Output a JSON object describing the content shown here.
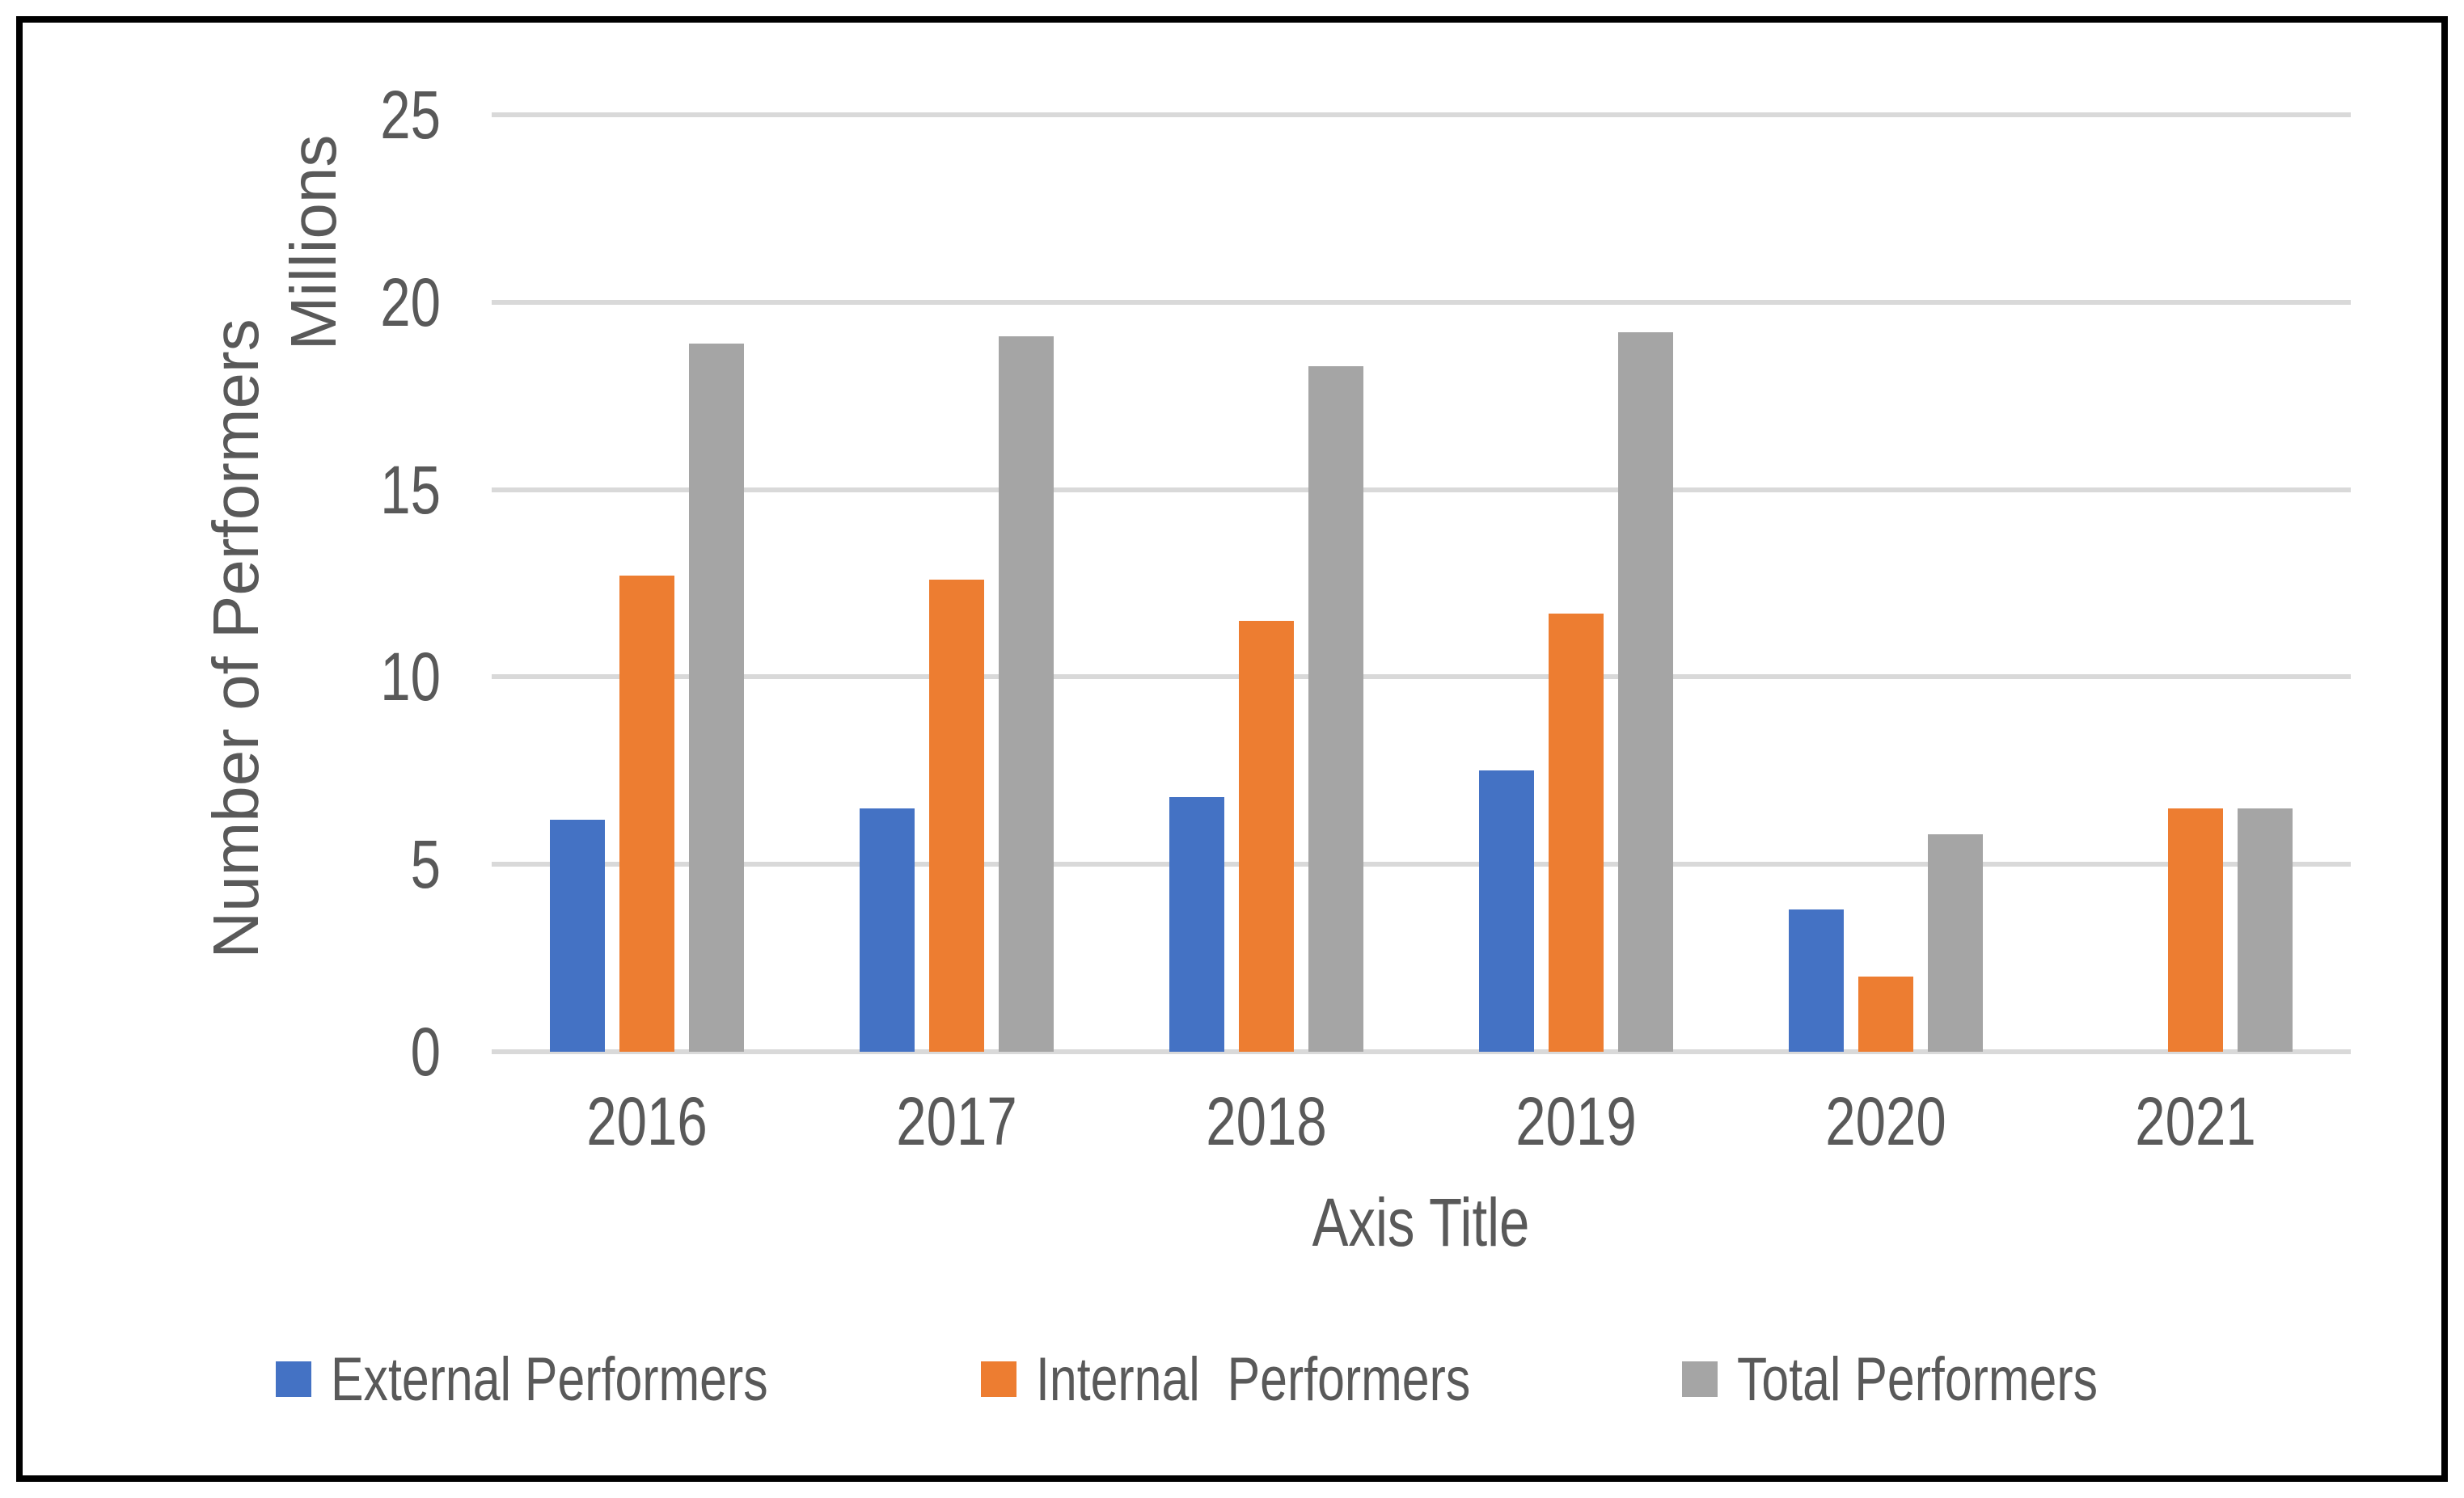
{
  "chart_data": {
    "type": "bar",
    "title": "",
    "categories": [
      "2016",
      "2017",
      "2018",
      "2019",
      "2020",
      "2021"
    ],
    "series": [
      {
        "name": "External Performers",
        "color": "#4472C4",
        "values": [
          6.2,
          6.5,
          6.8,
          7.5,
          3.8,
          0
        ]
      },
      {
        "name": "Internal  Performers",
        "color": "#ED7D31",
        "values": [
          12.7,
          12.6,
          11.5,
          11.7,
          2.0,
          6.5
        ]
      },
      {
        "name": "Total Performers",
        "color": "#A5A5A5",
        "values": [
          18.9,
          19.1,
          18.3,
          19.2,
          5.8,
          6.5
        ]
      }
    ],
    "xlabel": "Axis Title",
    "ylabel": "Number of Performers",
    "y_units_label": "Millions",
    "ylim": [
      0,
      25
    ],
    "yticks": [
      0,
      5,
      10,
      15,
      20,
      25
    ],
    "grid": true,
    "legend_position": "bottom"
  },
  "colors": {
    "text": "#595959",
    "gridline": "#D9D9D9",
    "frame_border": "#000000",
    "background": "#FFFFFF",
    "series_blue": "#4472C4",
    "series_orange": "#ED7D31",
    "series_gray": "#A5A5A5"
  }
}
